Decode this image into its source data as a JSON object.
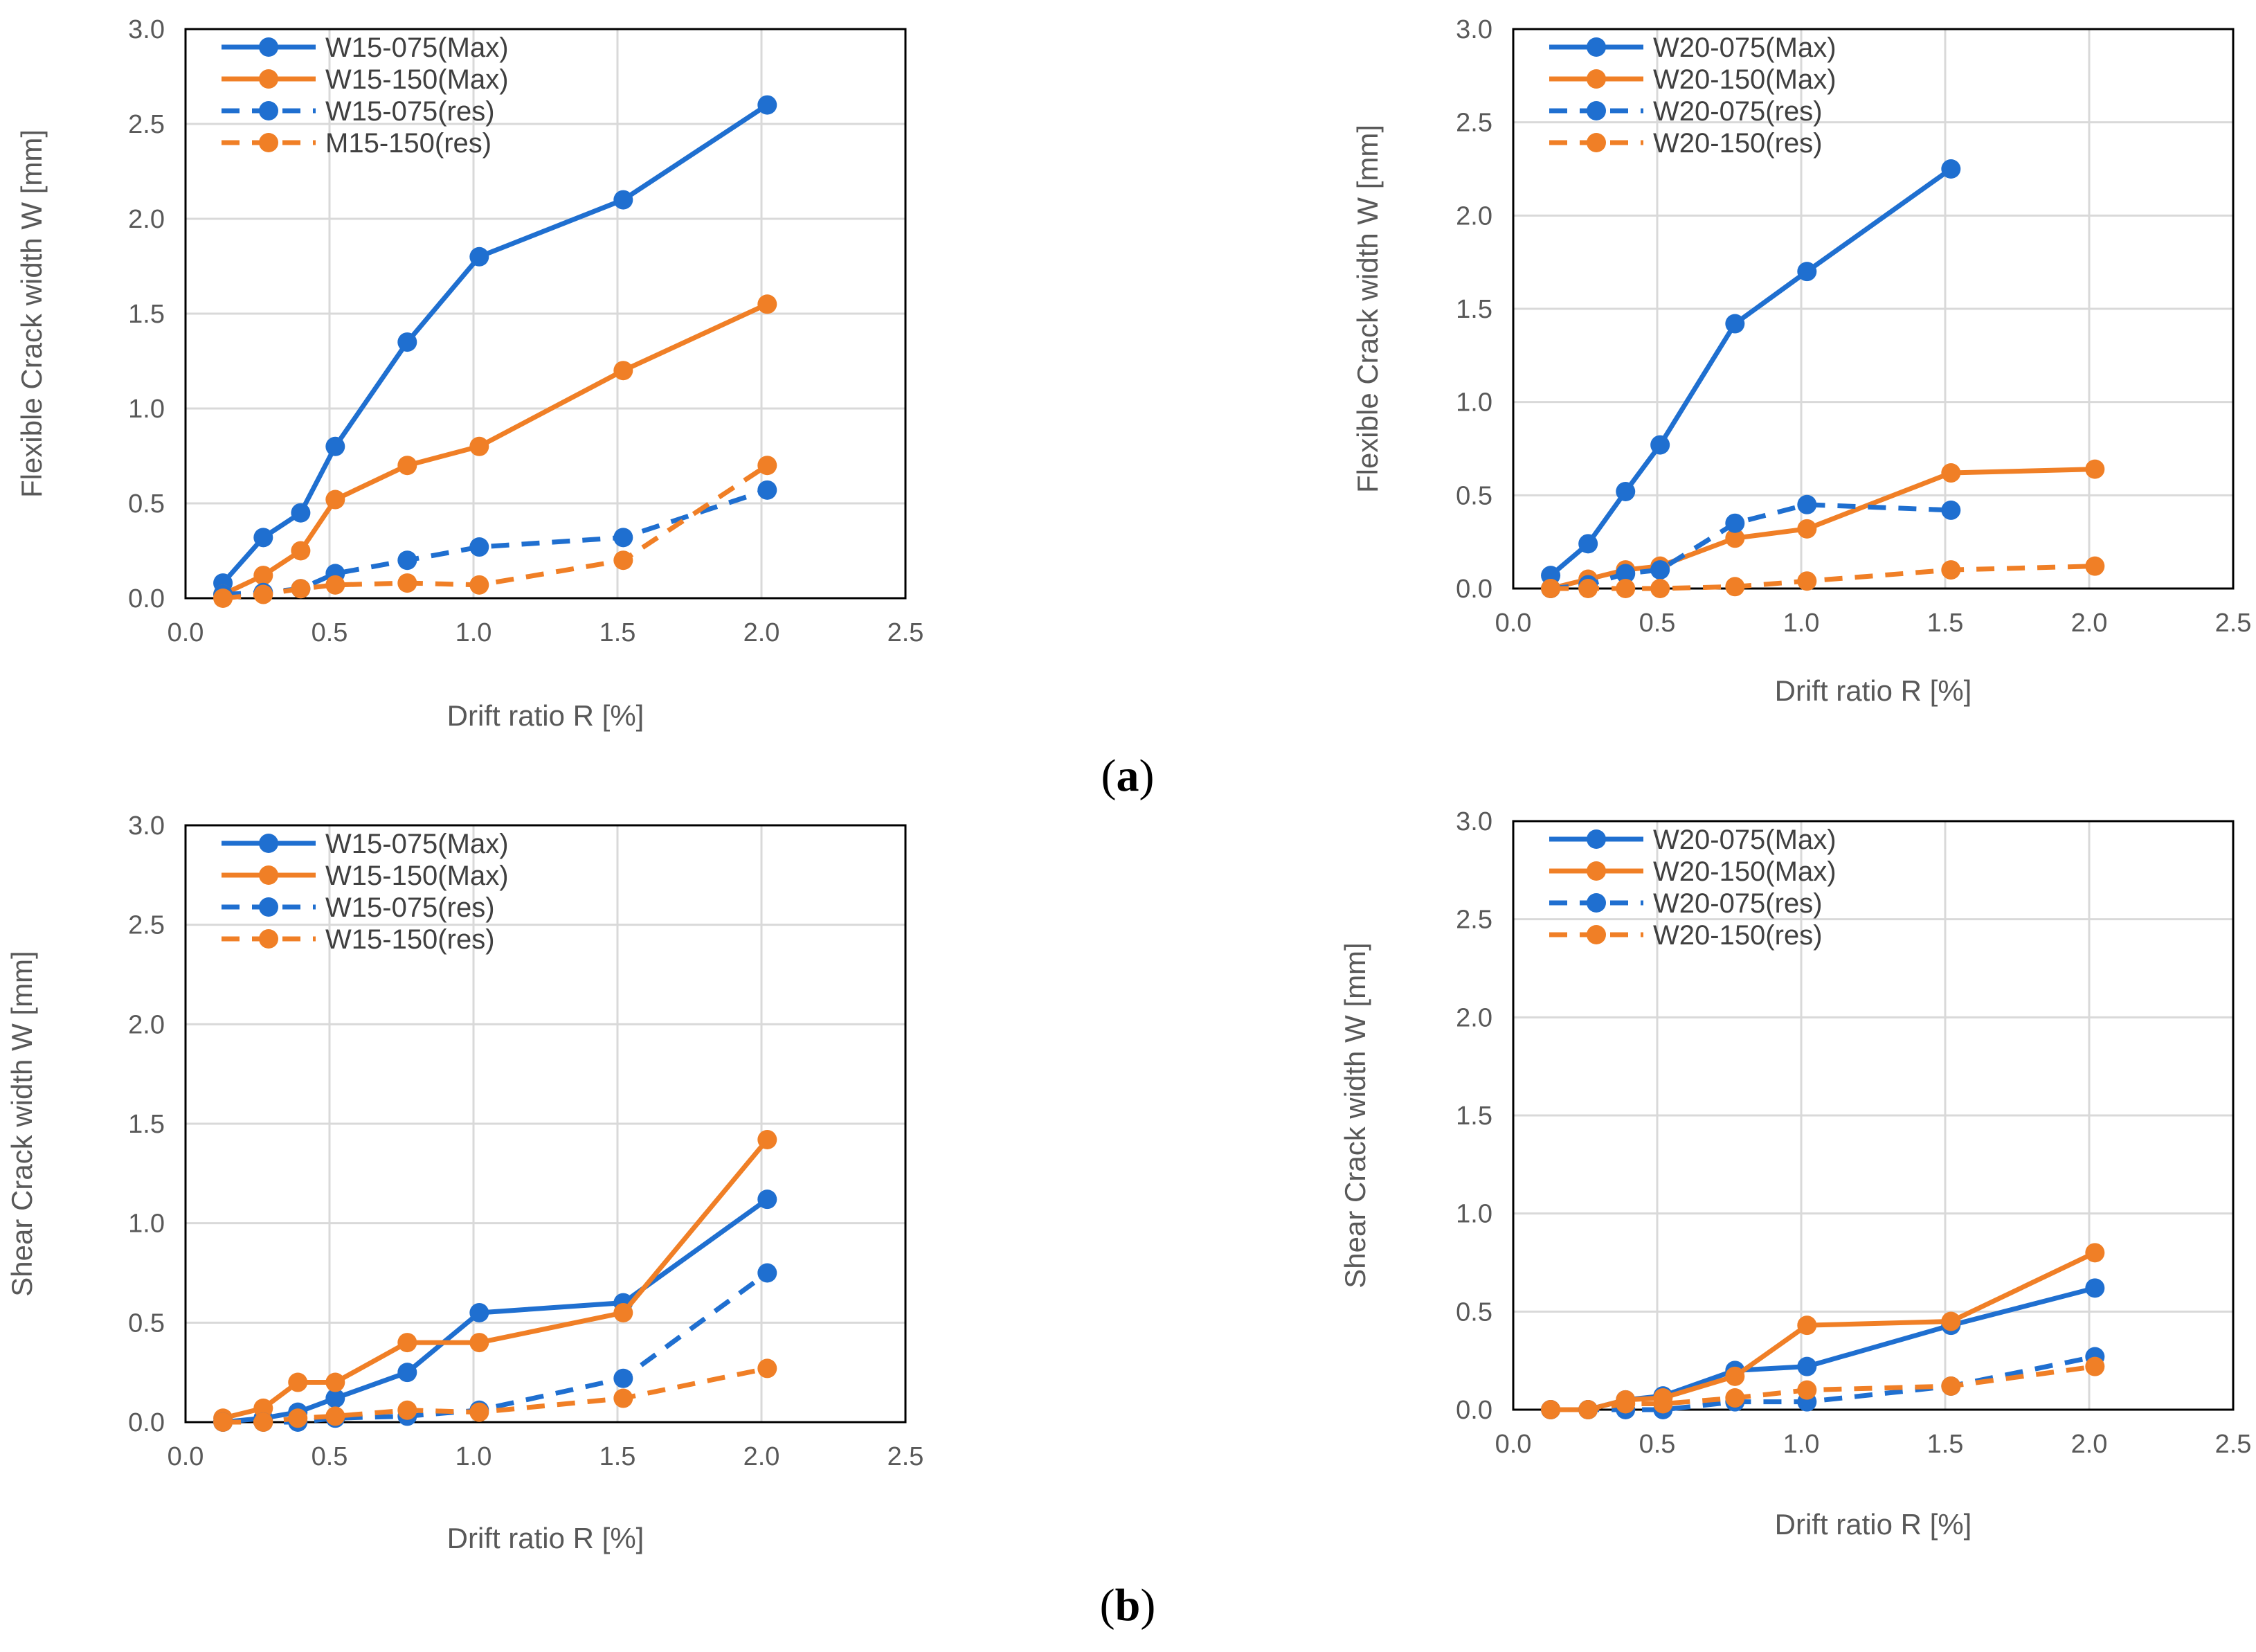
{
  "colors": {
    "blue": "#1f6fd0",
    "orange": "#f07f26"
  },
  "captions": {
    "a": "(a)",
    "b": "(b)"
  },
  "chart_data": [
    {
      "type": "line",
      "ylabel": "Flexible Crack width W [mm]",
      "xlabel": "Drift ratio R [%]",
      "xlim": [
        0,
        2.5
      ],
      "ylim": [
        0,
        3.0
      ],
      "xticks": [
        "0.0",
        "0.5",
        "1.0",
        "1.5",
        "2.0",
        "2.5"
      ],
      "yticks": [
        "0.0",
        "0.5",
        "1.0",
        "1.5",
        "2.0",
        "2.5",
        "3.0"
      ],
      "legend_position": "top-left",
      "series": [
        {
          "name": "W15-075(Max)",
          "color": "#1f6fd0",
          "dash": false,
          "x": [
            0.13,
            0.27,
            0.4,
            0.52,
            0.77,
            1.02,
            1.52,
            2.02
          ],
          "y": [
            0.08,
            0.32,
            0.45,
            0.8,
            1.35,
            1.8,
            2.1,
            2.6
          ]
        },
        {
          "name": "W15-150(Max)",
          "color": "#f07f26",
          "dash": false,
          "x": [
            0.13,
            0.27,
            0.4,
            0.52,
            0.77,
            1.02,
            1.52,
            2.02
          ],
          "y": [
            0.02,
            0.12,
            0.25,
            0.52,
            0.7,
            0.8,
            1.2,
            1.55
          ]
        },
        {
          "name": "W15-075(res)",
          "color": "#1f6fd0",
          "dash": true,
          "x": [
            0.13,
            0.27,
            0.4,
            0.52,
            0.77,
            1.02,
            1.52,
            2.02
          ],
          "y": [
            0.02,
            0.03,
            0.05,
            0.13,
            0.2,
            0.27,
            0.32,
            0.57
          ]
        },
        {
          "name": "M15-150(res)",
          "color": "#f07f26",
          "dash": true,
          "x": [
            0.13,
            0.27,
            0.4,
            0.52,
            0.77,
            1.02,
            1.52,
            2.02
          ],
          "y": [
            0.0,
            0.02,
            0.05,
            0.07,
            0.08,
            0.07,
            0.2,
            0.7
          ]
        }
      ]
    },
    {
      "type": "line",
      "ylabel": "Flexible Crack width W [mm]",
      "xlabel": "Drift ratio R [%]",
      "xlim": [
        0,
        2.5
      ],
      "ylim": [
        0,
        3.0
      ],
      "xticks": [
        "0.0",
        "0.5",
        "1.0",
        "1.5",
        "2.0",
        "2.5"
      ],
      "yticks": [
        "0.0",
        "0.5",
        "1.0",
        "1.5",
        "2.0",
        "2.5",
        "3.0"
      ],
      "legend_position": "top-left",
      "series": [
        {
          "name": "W20-075(Max)",
          "color": "#1f6fd0",
          "dash": false,
          "x": [
            0.13,
            0.26,
            0.39,
            0.51,
            0.77,
            1.02,
            1.52
          ],
          "y": [
            0.07,
            0.24,
            0.52,
            0.77,
            1.42,
            1.7,
            2.25
          ]
        },
        {
          "name": "W20-150(Max)",
          "color": "#f07f26",
          "dash": false,
          "x": [
            0.13,
            0.26,
            0.39,
            0.51,
            0.77,
            1.02,
            1.52,
            2.02
          ],
          "y": [
            0.0,
            0.05,
            0.1,
            0.12,
            0.27,
            0.32,
            0.62,
            0.64
          ]
        },
        {
          "name": "W20-075(res)",
          "color": "#1f6fd0",
          "dash": true,
          "x": [
            0.13,
            0.26,
            0.39,
            0.51,
            0.77,
            1.02,
            1.52
          ],
          "y": [
            0.0,
            0.02,
            0.08,
            0.1,
            0.35,
            0.45,
            0.42
          ]
        },
        {
          "name": "W20-150(res)",
          "color": "#f07f26",
          "dash": true,
          "x": [
            0.13,
            0.26,
            0.39,
            0.51,
            0.77,
            1.02,
            1.52,
            2.02
          ],
          "y": [
            0.0,
            0.0,
            0.0,
            0.0,
            0.01,
            0.04,
            0.1,
            0.12
          ]
        }
      ]
    },
    {
      "type": "line",
      "ylabel": "Shear Crack width W [mm]",
      "xlabel": "Drift ratio R [%]",
      "xlim": [
        0,
        2.5
      ],
      "ylim": [
        0,
        3.0
      ],
      "xticks": [
        "0.0",
        "0.5",
        "1.0",
        "1.5",
        "2.0",
        "2.5"
      ],
      "yticks": [
        "0.0",
        "0.5",
        "1.0",
        "1.5",
        "2.0",
        "2.5",
        "3.0"
      ],
      "legend_position": "top-left",
      "series": [
        {
          "name": "W15-075(Max)",
          "color": "#1f6fd0",
          "dash": false,
          "x": [
            0.13,
            0.27,
            0.39,
            0.52,
            0.77,
            1.02,
            1.52,
            2.02
          ],
          "y": [
            0.0,
            0.02,
            0.05,
            0.12,
            0.25,
            0.55,
            0.6,
            1.12
          ]
        },
        {
          "name": "W15-150(Max)",
          "color": "#f07f26",
          "dash": false,
          "x": [
            0.13,
            0.27,
            0.39,
            0.52,
            0.77,
            1.02,
            1.52,
            2.02
          ],
          "y": [
            0.02,
            0.07,
            0.2,
            0.2,
            0.4,
            0.4,
            0.55,
            1.42
          ]
        },
        {
          "name": "W15-075(res)",
          "color": "#1f6fd0",
          "dash": true,
          "x": [
            0.13,
            0.27,
            0.39,
            0.52,
            0.77,
            1.02,
            1.52,
            2.02
          ],
          "y": [
            0.0,
            0.0,
            0.0,
            0.02,
            0.03,
            0.06,
            0.22,
            0.75
          ]
        },
        {
          "name": "W15-150(res)",
          "color": "#f07f26",
          "dash": true,
          "x": [
            0.13,
            0.27,
            0.39,
            0.52,
            0.77,
            1.02,
            1.52,
            2.02
          ],
          "y": [
            0.0,
            0.0,
            0.02,
            0.03,
            0.06,
            0.05,
            0.12,
            0.27
          ]
        }
      ]
    },
    {
      "type": "line",
      "ylabel": "Shear Crack width W [mm]",
      "xlabel": "Drift ratio R [%]",
      "xlim": [
        0,
        2.5
      ],
      "ylim": [
        0,
        3.0
      ],
      "xticks": [
        "0.0",
        "0.5",
        "1.0",
        "1.5",
        "2.0",
        "2.5"
      ],
      "yticks": [
        "0.0",
        "0.5",
        "1.0",
        "1.5",
        "2.0",
        "2.5",
        "3.0"
      ],
      "legend_position": "top-left",
      "series": [
        {
          "name": "W20-075(Max)",
          "color": "#1f6fd0",
          "dash": false,
          "x": [
            0.13,
            0.26,
            0.39,
            0.52,
            0.77,
            1.02,
            1.52,
            2.02
          ],
          "y": [
            0.0,
            0.0,
            0.05,
            0.07,
            0.2,
            0.22,
            0.43,
            0.62
          ]
        },
        {
          "name": "W20-150(Max)",
          "color": "#f07f26",
          "dash": false,
          "x": [
            0.13,
            0.26,
            0.39,
            0.52,
            0.77,
            1.02,
            1.52,
            2.02
          ],
          "y": [
            0.0,
            0.0,
            0.05,
            0.06,
            0.17,
            0.43,
            0.45,
            0.8
          ]
        },
        {
          "name": "W20-075(res)",
          "color": "#1f6fd0",
          "dash": true,
          "x": [
            0.13,
            0.26,
            0.39,
            0.52,
            0.77,
            1.02,
            1.52,
            2.02
          ],
          "y": [
            0.0,
            0.0,
            0.0,
            0.0,
            0.04,
            0.04,
            0.12,
            0.27
          ]
        },
        {
          "name": "W20-150(res)",
          "color": "#f07f26",
          "dash": true,
          "x": [
            0.13,
            0.26,
            0.39,
            0.52,
            0.77,
            1.02,
            1.52,
            2.02
          ],
          "y": [
            0.0,
            0.0,
            0.03,
            0.03,
            0.06,
            0.1,
            0.12,
            0.22
          ]
        }
      ]
    }
  ]
}
